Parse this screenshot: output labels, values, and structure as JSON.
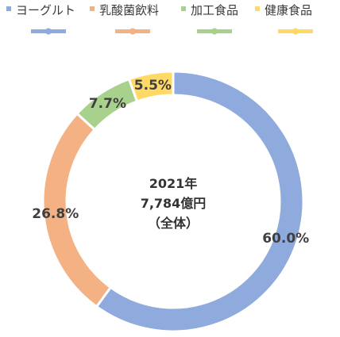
{
  "chart_data": {
    "type": "pie",
    "donut": true,
    "categories": [
      "ヨーグルト",
      "乳酸菌飲料",
      "加工食品",
      "健康食品"
    ],
    "values": [
      60.0,
      26.8,
      7.7,
      5.5
    ],
    "value_labels": [
      "60.0%",
      "26.8%",
      "7.7%",
      "5.5%"
    ],
    "colors": [
      "#8FAADC",
      "#F4B183",
      "#A9D18E",
      "#FFD966"
    ],
    "center_lines": [
      "2021年",
      "7,784億円",
      "（全体）"
    ],
    "legend": {
      "placement": "top"
    }
  }
}
